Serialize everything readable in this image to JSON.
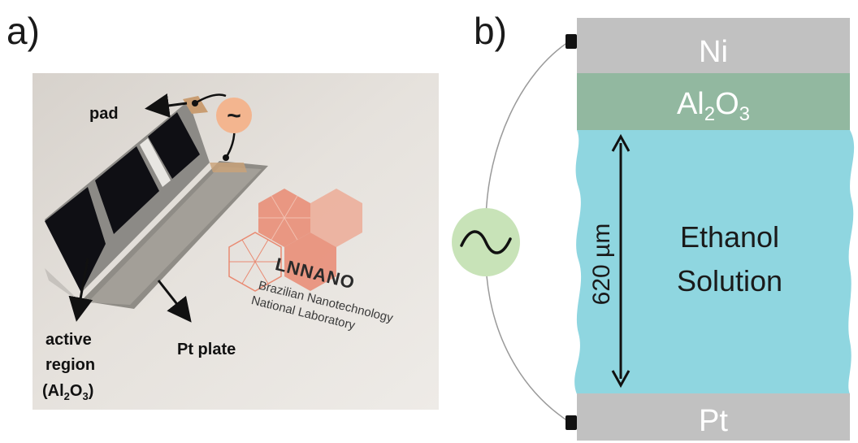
{
  "figure": {
    "panel_a": {
      "label": "a)",
      "annotations": {
        "pad": "pad",
        "active_region_line1": "active",
        "active_region_line2": "region",
        "active_region_line3_open": "(Al",
        "active_region_sub1": "2",
        "active_region_mid": "O",
        "active_region_sub2": "3",
        "active_region_close": ")",
        "pt_plate": "Pt plate"
      },
      "source_symbol": "~",
      "logo": {
        "name": "LNNANO",
        "caption_line1": "Brazilian Nanotechnology",
        "caption_line2": "National Laboratory"
      }
    },
    "panel_b": {
      "label": "b)",
      "layers": {
        "ni": "Ni",
        "al2o3_main": "Al",
        "al2o3_sub1": "2",
        "al2o3_mid": "O",
        "al2o3_sub2": "3",
        "solution_line1": "Ethanol",
        "solution_line2": "Solution",
        "pt": "Pt"
      },
      "dimension": "620 µm",
      "colors": {
        "ni": "#c1c1c1",
        "al2o3": "#92b8a0",
        "solution": "#8fd6e0",
        "pt": "#c1c1c1",
        "source": "#c8e3b8",
        "source_a": "#f3b58f",
        "logo": "#e98a72"
      }
    }
  }
}
